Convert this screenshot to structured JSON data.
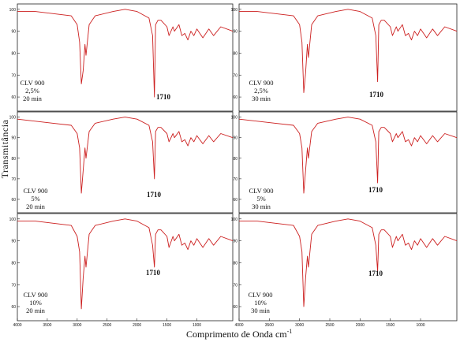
{
  "figure": {
    "ylabel": "Transmitância",
    "xlabel": "Comprimento de Onda cm",
    "xlabel_superscript": "-1"
  },
  "colors": {
    "spectrum": "#cc1f1f",
    "axis": "#222222",
    "label": "#111111"
  },
  "chart_data": [
    {
      "type": "line",
      "label_lines": [
        "CLV 900",
        "2,5%",
        "20 min"
      ],
      "peak_label": "1710",
      "y_ticks": [
        "100",
        "90",
        "80",
        "70",
        "60"
      ],
      "x_ticks": [],
      "xlim": [
        4000,
        400
      ],
      "series": [
        {
          "x": [
            4000,
            3700,
            3400,
            3100,
            3000,
            2960,
            2930,
            2900,
            2870,
            2853,
            2800,
            2700,
            2400,
            2200,
            2000,
            1800,
            1740,
            1710,
            1690,
            1650,
            1600,
            1500,
            1465,
            1400,
            1375,
            1300,
            1250,
            1200,
            1150,
            1100,
            1050,
            1000,
            900,
            800,
            720,
            600,
            400
          ],
          "y": [
            99,
            99,
            98,
            97,
            93,
            85,
            66,
            72,
            84,
            79,
            93,
            97,
            99,
            100,
            99,
            96,
            88,
            60,
            93,
            95,
            95,
            92,
            88,
            92,
            90,
            93,
            88,
            89,
            86,
            90,
            88,
            91,
            87,
            91,
            88,
            92,
            90
          ]
        }
      ]
    },
    {
      "type": "line",
      "label_lines": [
        "CLV 900",
        "2,5%",
        "30 min"
      ],
      "peak_label": "1710",
      "y_ticks": [
        "100",
        "90",
        "80",
        "70",
        "60"
      ],
      "x_ticks": [],
      "xlim": [
        4000,
        400
      ],
      "series": [
        {
          "x": [
            4000,
            3700,
            3400,
            3100,
            3000,
            2960,
            2930,
            2900,
            2870,
            2853,
            2800,
            2700,
            2400,
            2200,
            2000,
            1800,
            1740,
            1710,
            1690,
            1650,
            1600,
            1500,
            1465,
            1400,
            1375,
            1300,
            1250,
            1200,
            1150,
            1100,
            1050,
            1000,
            900,
            800,
            720,
            600,
            400
          ],
          "y": [
            99,
            99,
            98,
            97,
            93,
            85,
            62,
            71,
            84,
            78,
            93,
            97,
            99,
            100,
            99,
            96,
            88,
            67,
            93,
            95,
            95,
            92,
            88,
            92,
            90,
            93,
            88,
            89,
            86,
            90,
            88,
            91,
            87,
            91,
            88,
            92,
            90
          ]
        }
      ]
    },
    {
      "type": "line",
      "label_lines": [
        "CLV 900",
        "5%",
        "20 min"
      ],
      "peak_label": "1710",
      "y_ticks": [
        "100",
        "90",
        "80",
        "70",
        "60"
      ],
      "x_ticks": [],
      "xlim": [
        4000,
        400
      ],
      "series": [
        {
          "x": [
            4000,
            3700,
            3400,
            3100,
            3000,
            2960,
            2930,
            2900,
            2870,
            2853,
            2800,
            2700,
            2400,
            2200,
            2000,
            1800,
            1740,
            1710,
            1690,
            1650,
            1600,
            1500,
            1465,
            1400,
            1375,
            1300,
            1250,
            1200,
            1150,
            1100,
            1050,
            1000,
            900,
            800,
            720,
            600,
            400
          ],
          "y": [
            99,
            98,
            97,
            96,
            92,
            85,
            63,
            74,
            85,
            80,
            93,
            97,
            99,
            100,
            99,
            96,
            88,
            70,
            93,
            95,
            95,
            92,
            88,
            92,
            90,
            93,
            88,
            89,
            86,
            90,
            88,
            91,
            87,
            91,
            88,
            92,
            90
          ]
        }
      ]
    },
    {
      "type": "line",
      "label_lines": [
        "CLV 900",
        "5%",
        "30 min"
      ],
      "peak_label": "1710",
      "y_ticks": [
        "100",
        "90",
        "80",
        "70",
        "60"
      ],
      "x_ticks": [],
      "xlim": [
        4000,
        400
      ],
      "series": [
        {
          "x": [
            4000,
            3700,
            3400,
            3100,
            3000,
            2960,
            2930,
            2900,
            2870,
            2853,
            2800,
            2700,
            2400,
            2200,
            2000,
            1800,
            1740,
            1710,
            1690,
            1650,
            1600,
            1500,
            1465,
            1400,
            1375,
            1300,
            1250,
            1200,
            1150,
            1100,
            1050,
            1000,
            900,
            800,
            720,
            600,
            400
          ],
          "y": [
            99,
            98,
            97,
            96,
            92,
            85,
            63,
            74,
            85,
            80,
            93,
            97,
            99,
            100,
            99,
            96,
            88,
            68,
            93,
            95,
            95,
            92,
            88,
            92,
            90,
            93,
            88,
            89,
            86,
            90,
            88,
            91,
            87,
            91,
            88,
            92,
            90
          ]
        }
      ]
    },
    {
      "type": "line",
      "label_lines": [
        "CLV 900",
        "10%",
        "20 min"
      ],
      "peak_label": "1710",
      "y_ticks": [
        "100",
        "90",
        "80",
        "70",
        "60"
      ],
      "x_ticks": [
        "4000",
        "3500",
        "3000",
        "2500",
        "2000",
        "1500",
        "1000"
      ],
      "xlim": [
        4000,
        400
      ],
      "series": [
        {
          "x": [
            4000,
            3700,
            3400,
            3100,
            3000,
            2960,
            2930,
            2900,
            2870,
            2853,
            2800,
            2700,
            2400,
            2200,
            2000,
            1800,
            1740,
            1710,
            1690,
            1650,
            1600,
            1500,
            1465,
            1400,
            1375,
            1300,
            1250,
            1200,
            1150,
            1100,
            1050,
            1000,
            900,
            800,
            720,
            600,
            400
          ],
          "y": [
            99,
            99,
            98,
            97,
            92,
            85,
            59,
            73,
            83,
            78,
            93,
            97,
            99,
            100,
            99,
            96,
            88,
            78,
            93,
            95,
            95,
            92,
            87,
            92,
            90,
            93,
            88,
            89,
            86,
            90,
            88,
            91,
            87,
            91,
            88,
            92,
            90
          ]
        }
      ]
    },
    {
      "type": "line",
      "label_lines": [
        "CLV 900",
        "10%",
        "30 min"
      ],
      "peak_label": "1710",
      "y_ticks": [
        "100",
        "90",
        "80",
        "70",
        "60"
      ],
      "x_ticks": [
        "4000",
        "3500",
        "3000",
        "2500",
        "2000",
        "1500",
        "1000"
      ],
      "xlim": [
        4000,
        400
      ],
      "series": [
        {
          "x": [
            4000,
            3700,
            3400,
            3100,
            3000,
            2960,
            2930,
            2900,
            2870,
            2853,
            2800,
            2700,
            2400,
            2200,
            2000,
            1800,
            1740,
            1710,
            1690,
            1650,
            1600,
            1500,
            1465,
            1400,
            1375,
            1300,
            1250,
            1200,
            1150,
            1100,
            1050,
            1000,
            900,
            800,
            720,
            600,
            400
          ],
          "y": [
            99,
            99,
            98,
            97,
            92,
            85,
            60,
            73,
            83,
            78,
            93,
            97,
            99,
            100,
            99,
            96,
            88,
            76,
            93,
            95,
            95,
            92,
            87,
            92,
            90,
            93,
            88,
            89,
            86,
            90,
            88,
            91,
            87,
            91,
            88,
            92,
            90
          ]
        }
      ]
    }
  ]
}
